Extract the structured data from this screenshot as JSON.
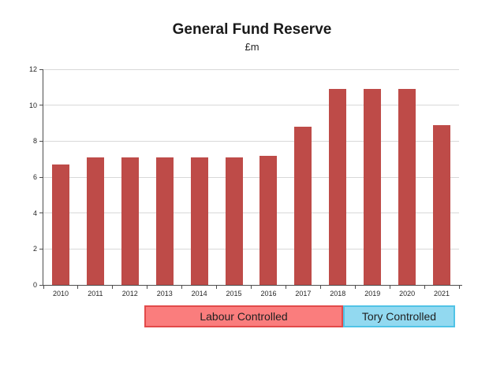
{
  "chart": {
    "title": "General Fund Reserve",
    "subtitle": "£m"
  },
  "chart_data": {
    "type": "bar",
    "title": "General Fund Reserve",
    "subtitle": "£m",
    "categories": [
      "2010",
      "2011",
      "2012",
      "2013",
      "2014",
      "2015",
      "2016",
      "2017",
      "2018",
      "2019",
      "2020",
      "2021"
    ],
    "values": [
      6.7,
      7.1,
      7.1,
      7.1,
      7.1,
      7.1,
      7.2,
      8.8,
      10.9,
      10.9,
      10.9,
      8.9
    ],
    "xlabel": "",
    "ylabel": "",
    "ylim": [
      0,
      12
    ],
    "yticks": [
      0,
      2,
      4,
      6,
      8,
      10,
      12
    ],
    "grid": true,
    "legend_position": "none",
    "bar_color": "#BE4B48",
    "gridline_color": "#D8D8D8",
    "axis_color": "#4D4D4D"
  },
  "annotations": [
    {
      "label": "Labour Controlled",
      "fill": "#FA7D7D",
      "border": "#E24A4A",
      "text_color": "#1F1F1F"
    },
    {
      "label": "Tory Controlled",
      "fill": "#92D9F0",
      "border": "#50C3E6",
      "text_color": "#1F1F1F"
    }
  ]
}
